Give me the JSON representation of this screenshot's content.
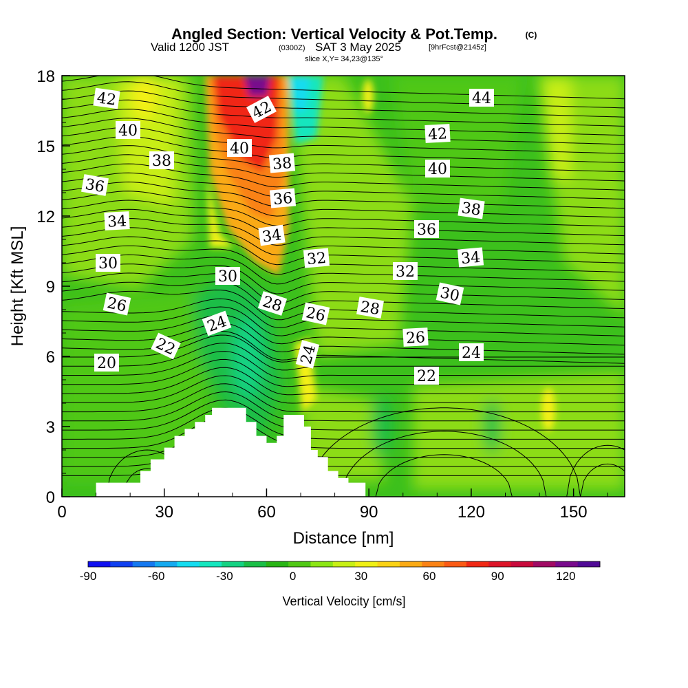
{
  "header": {
    "title": "Angled Section: Vertical Velocity & Pot.Temp.",
    "title_mark": "(C)",
    "valid_prefix": "Valid 1200 JST",
    "valid_zulu": "(0300Z)",
    "valid_date": "SAT 3 May 2025",
    "forecast": "[9hrFcst@2145z]",
    "slice": "slice X,Y= 34,23@135°"
  },
  "chart_data": {
    "type": "heatmap",
    "xlabel": "Distance [nm]",
    "ylabel": "Height [Kft MSL]",
    "xlim": [
      0,
      165
    ],
    "ylim": [
      0,
      18
    ],
    "x_ticks": [
      0,
      30,
      60,
      90,
      120,
      150
    ],
    "y_ticks": [
      0,
      3,
      6,
      9,
      12,
      15,
      18
    ],
    "background_color": "#3cc01c",
    "terrain_profile": [
      [
        10,
        0.6
      ],
      [
        20,
        0.6
      ],
      [
        23,
        1.1
      ],
      [
        26,
        1.6
      ],
      [
        30,
        2.1
      ],
      [
        33,
        2.6
      ],
      [
        36,
        2.9
      ],
      [
        39,
        3.2
      ],
      [
        42,
        3.5
      ],
      [
        44,
        3.8
      ],
      [
        51,
        3.8
      ],
      [
        54,
        3.2
      ],
      [
        57,
        2.6
      ],
      [
        60,
        2.3
      ],
      [
        63,
        2.6
      ],
      [
        65,
        3.5
      ],
      [
        69,
        3.5
      ],
      [
        71,
        3.0
      ],
      [
        73,
        2.0
      ],
      [
        75,
        1.7
      ],
      [
        78,
        1.1
      ],
      [
        81,
        0.8
      ],
      [
        84,
        0.6
      ],
      [
        89,
        0.6
      ]
    ],
    "velocity_regions": [
      {
        "color": "#ffea00",
        "value": 30,
        "x": [
          22,
          28
        ],
        "y": [
          15,
          18
        ]
      },
      {
        "color": "#ffb400",
        "value": 55,
        "x": [
          43,
          66
        ],
        "y": [
          10,
          18
        ]
      },
      {
        "color": "#ff7800",
        "value": 75,
        "x": [
          45,
          64
        ],
        "y": [
          12,
          18
        ]
      },
      {
        "color": "#f02814",
        "value": 95,
        "x": [
          45,
          62
        ],
        "y": [
          14.5,
          18
        ]
      },
      {
        "color": "#70008c",
        "value": 130,
        "x": [
          53,
          60
        ],
        "y": [
          17,
          18
        ]
      },
      {
        "color": "#14e6e6",
        "value": -40,
        "x": [
          66,
          72
        ],
        "y": [
          14,
          18
        ]
      },
      {
        "color": "#1acd50",
        "value": -20,
        "x": [
          38,
          62
        ],
        "y": [
          3.5,
          9
        ]
      },
      {
        "color": "#ffea00",
        "value": 28,
        "x": [
          140,
          144
        ],
        "y": [
          3,
          4.5
        ]
      },
      {
        "color": "#ffea00",
        "value": 25,
        "x": [
          67,
          72
        ],
        "y": [
          1.5,
          5
        ]
      }
    ],
    "isentropes": [
      20,
      22,
      24,
      26,
      28,
      30,
      32,
      34,
      36,
      38,
      40,
      42,
      44
    ],
    "contour_labels": [
      "42",
      "40",
      "38",
      "36",
      "34",
      "30",
      "26",
      "22",
      "20",
      "42",
      "40",
      "38",
      "36",
      "34",
      "30",
      "28",
      "24",
      "32",
      "26",
      "24",
      "32",
      "28",
      "30",
      "34",
      "26",
      "24",
      "22",
      "36",
      "38",
      "40",
      "42",
      "44"
    ],
    "colorbar": {
      "label": "Vertical Velocity [cm/s]",
      "ticks": [
        "-90",
        "-60",
        "-30",
        "0",
        "30",
        "60",
        "90",
        "120"
      ],
      "range": [
        -90,
        135
      ],
      "colors": [
        "#1010f0",
        "#1040f0",
        "#1478f0",
        "#14aaf0",
        "#14dcf0",
        "#14e6be",
        "#14d282",
        "#1abe46",
        "#28b414",
        "#50c814",
        "#8ce614",
        "#c8f014",
        "#f0f014",
        "#fad214",
        "#faaa14",
        "#fa8214",
        "#fa5a14",
        "#f02814",
        "#dc1428",
        "#c80a3c",
        "#a00a64",
        "#780a8c",
        "#500a96"
      ]
    }
  }
}
